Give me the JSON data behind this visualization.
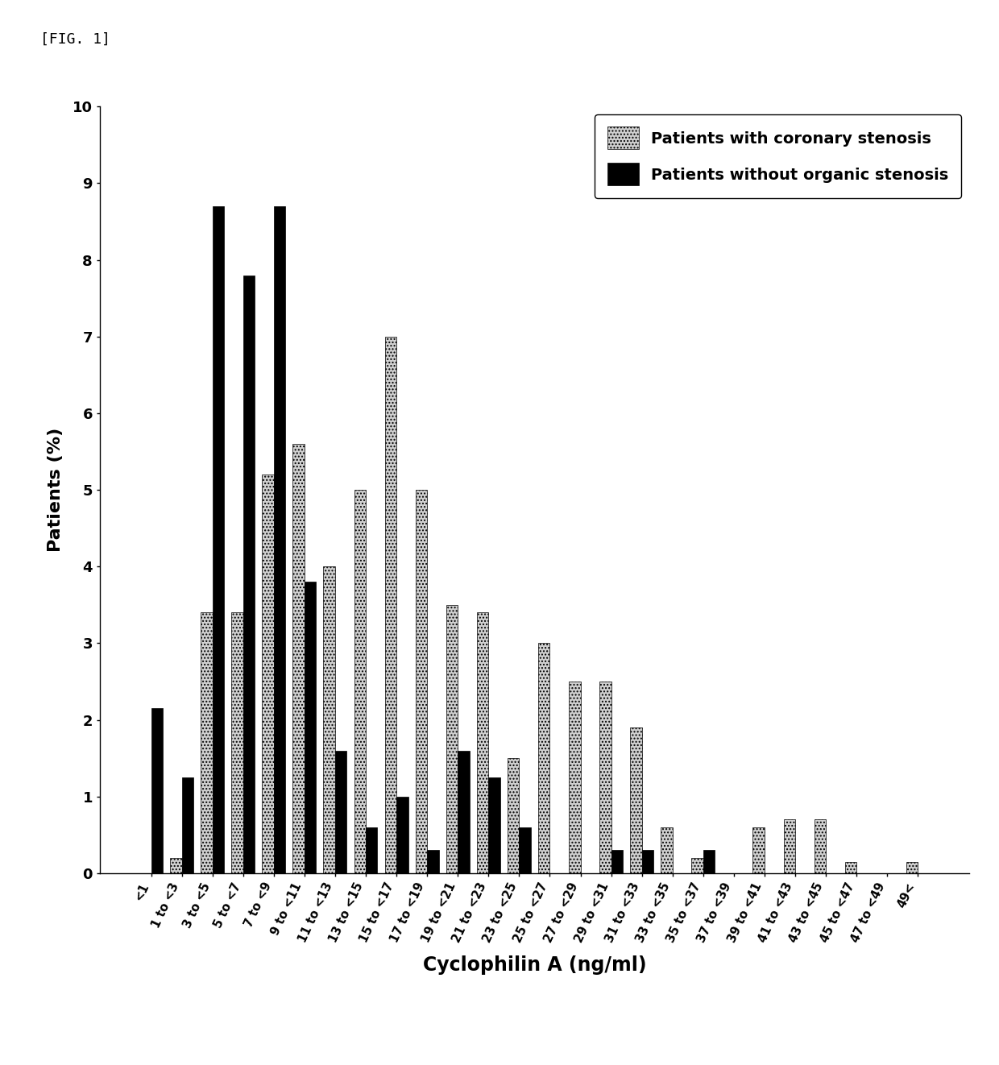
{
  "categories": [
    "<1",
    "1 to <3",
    "3 to <5",
    "5 to <7",
    "7 to <9",
    "9 to <11",
    "11 to <13",
    "13 to <15",
    "15 to <17",
    "17 to <19",
    "19 to <21",
    "21 to <23",
    "23 to <25",
    "25 to <27",
    "27 to <29",
    "29 to <31",
    "31 to <33",
    "33 to <35",
    "35 to <37",
    "37 to <39",
    "39 to <41",
    "41 to <43",
    "43 to <45",
    "45 to <47",
    "47 to <49",
    "49<"
  ],
  "stenosis": [
    0.0,
    0.2,
    3.4,
    3.4,
    5.2,
    5.6,
    4.0,
    5.0,
    7.0,
    5.0,
    3.5,
    3.4,
    1.5,
    3.0,
    2.5,
    2.5,
    1.9,
    0.6,
    0.2,
    0.0,
    0.6,
    0.7,
    0.7,
    0.15,
    0.0,
    0.15
  ],
  "no_stenosis": [
    2.15,
    1.25,
    8.7,
    7.8,
    8.7,
    3.8,
    1.6,
    0.6,
    1.0,
    0.3,
    1.6,
    1.25,
    0.6,
    0.0,
    0.0,
    0.3,
    0.3,
    0.0,
    0.3,
    0.0,
    0.0,
    0.0,
    0.0,
    0.0,
    0.0,
    0.0
  ],
  "ylabel": "Patients (%)",
  "xlabel": "Cyclophilin A (ng/ml)",
  "ylim": [
    0,
    10
  ],
  "yticks": [
    0,
    1,
    2,
    3,
    4,
    5,
    6,
    7,
    8,
    9,
    10
  ],
  "legend_stenosis": "Patients with coronary stenosis",
  "legend_no_stenosis": "Patients without organic stenosis",
  "color_stenosis_face": "#d0d0d0",
  "color_stenosis_hatch": "....",
  "color_no_stenosis": "#000000",
  "fig_label": "[FIG. 1]",
  "bar_width": 0.38
}
